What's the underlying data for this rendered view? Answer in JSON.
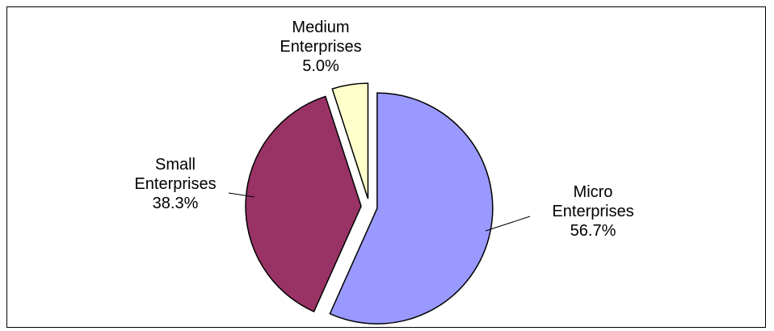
{
  "chart_data": {
    "type": "pie",
    "title": "",
    "legend": "none",
    "slices": [
      {
        "name": "Micro Enterprises",
        "label_lines": [
          "Micro",
          "Enterprises"
        ],
        "value": 56.7,
        "value_label": "56.7%",
        "color": "#9999ff",
        "exploded": true
      },
      {
        "name": "Small Enterprises",
        "label_lines": [
          "Small",
          "Enterprises"
        ],
        "value": 38.3,
        "value_label": "38.3%",
        "color": "#993366",
        "exploded": true
      },
      {
        "name": "Medium Enterprises",
        "label_lines": [
          "Medium",
          "Enterprises"
        ],
        "value": 5.0,
        "value_label": "5.0%",
        "color": "#ffffcc",
        "exploded": true
      }
    ]
  }
}
